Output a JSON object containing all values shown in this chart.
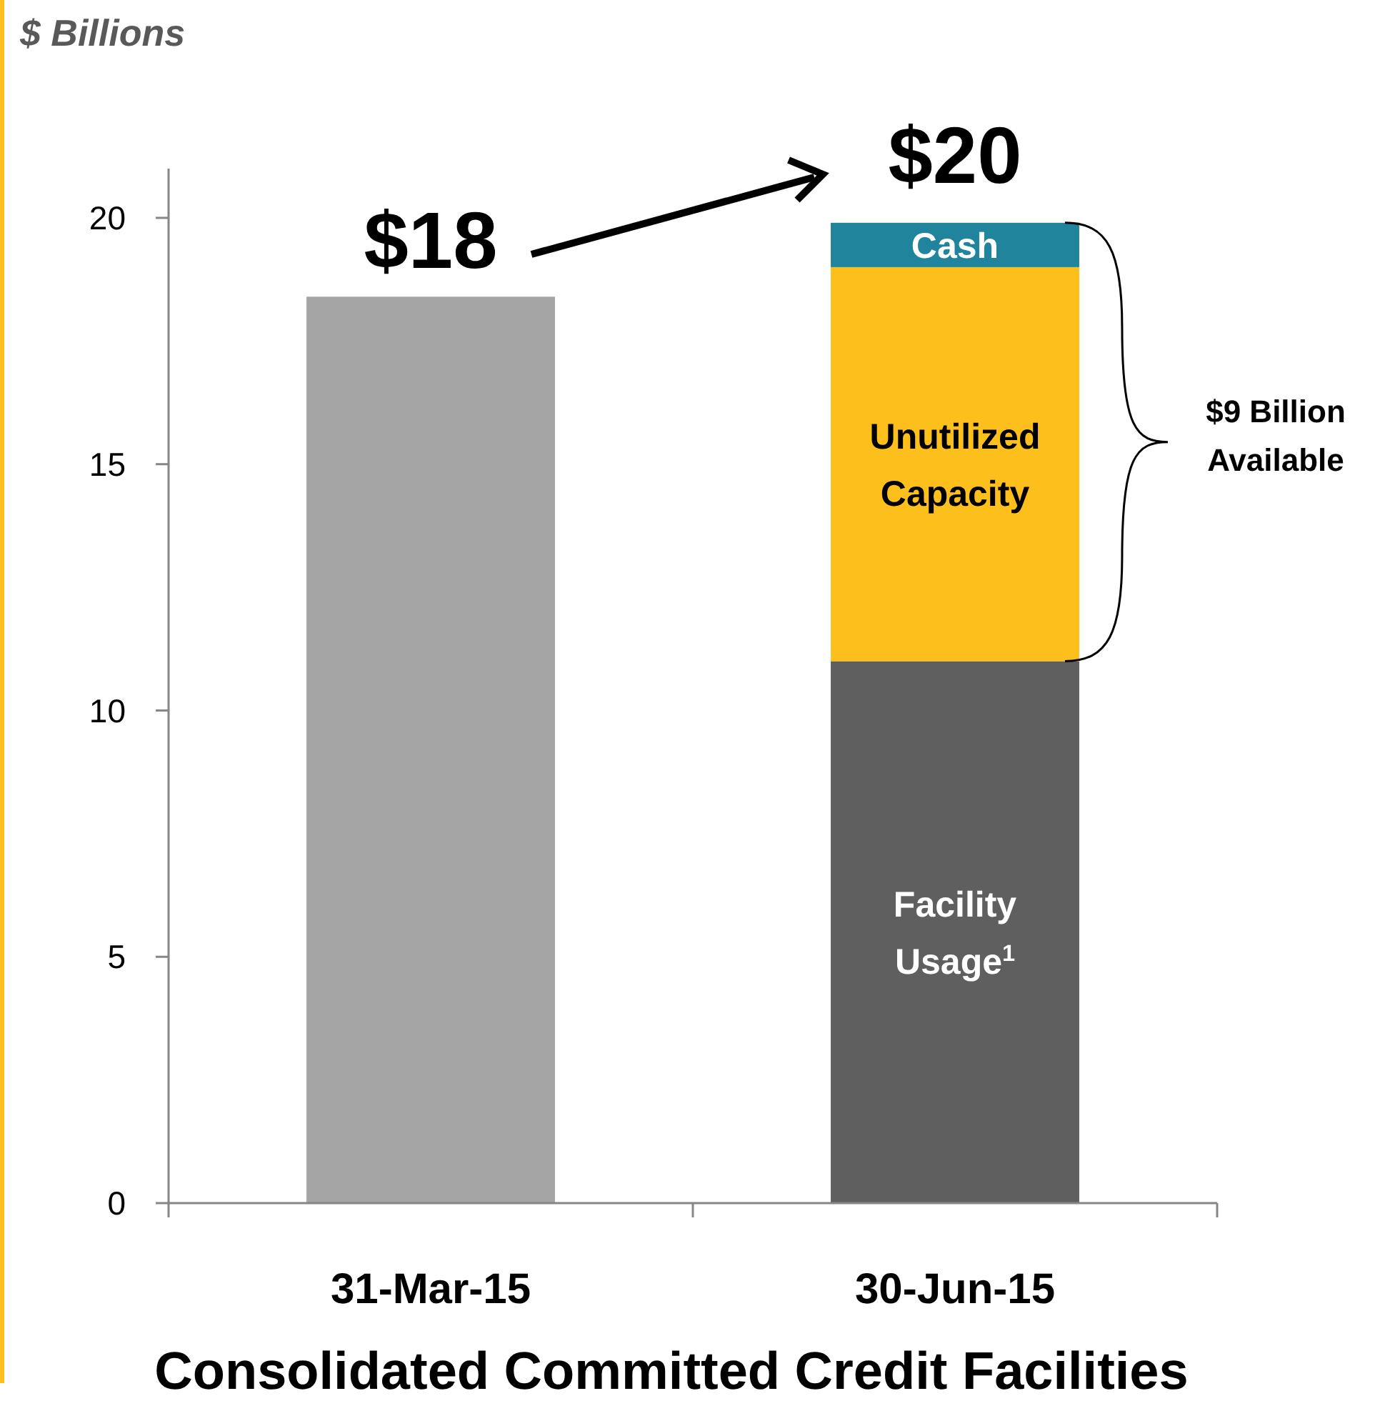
{
  "chart_data": {
    "type": "bar",
    "stacked": true,
    "title": "Consolidated Committed Credit Facilities",
    "ylabel": "$ Billions",
    "categories": [
      "31-Mar-15",
      "30-Jun-15"
    ],
    "series": [
      {
        "color": "#a5a5a5",
        "values": [
          18.4,
          null
        ]
      },
      {
        "name": "Facility Usage$^{1}$",
        "color": "#5f5f5f",
        "values": [
          null,
          11.0
        ]
      },
      {
        "name": "Unutilized Capacity",
        "color": "#fdbf1c",
        "values": [
          null,
          8.0
        ]
      },
      {
        "name": "Cash",
        "color": "#1f849c",
        "values": [
          null,
          0.9
        ]
      }
    ],
    "totals": [
      "$18",
      "$20"
    ],
    "annotations": [
      "$9 Billion Available"
    ],
    "ylim": [
      0,
      21
    ],
    "yticks": [
      0,
      5,
      10,
      15,
      20
    ],
    "grid": false
  }
}
